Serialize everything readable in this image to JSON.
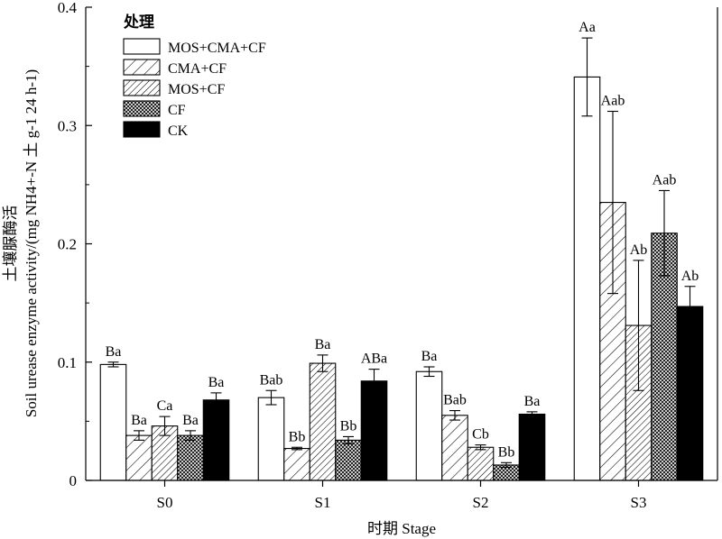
{
  "chart_data": {
    "type": "bar",
    "categories": [
      "S0",
      "S1",
      "S2",
      "S3"
    ],
    "xlabel": "时期 Stage",
    "ylabel_cn": "土壤脲酶活",
    "ylabel_en": "Soil urease enzyme activity/(mg NH4+-N 土 g-1 24 h-1)",
    "ylim": [
      0,
      0.4
    ],
    "yticks": [
      "0",
      "0.1",
      "0.2",
      "0.3",
      "0.4"
    ],
    "legend_title": "处理",
    "legend_position": "top-left",
    "series": [
      {
        "name": "MOS+CMA+CF",
        "pattern": "white",
        "values": [
          0.098,
          0.07,
          0.092,
          0.341
        ],
        "errors": [
          0.002,
          0.006,
          0.004,
          0.033
        ],
        "labels": [
          "Ba",
          "Bab",
          "Ba",
          "Aa"
        ]
      },
      {
        "name": "CMA+CF",
        "pattern": "diagonal",
        "values": [
          0.038,
          0.027,
          0.055,
          0.235
        ],
        "errors": [
          0.004,
          0.001,
          0.004,
          0.077
        ],
        "labels": [
          "Ba",
          "Bb",
          "Bab",
          "Aab"
        ]
      },
      {
        "name": "MOS+CF",
        "pattern": "dense-diagonal",
        "values": [
          0.046,
          0.099,
          0.028,
          0.131
        ],
        "errors": [
          0.008,
          0.007,
          0.002,
          0.055
        ],
        "labels": [
          "Ca",
          "Ba",
          "Cb",
          "Ab"
        ]
      },
      {
        "name": "CF",
        "pattern": "crosshatch",
        "values": [
          0.038,
          0.034,
          0.013,
          0.209
        ],
        "errors": [
          0.004,
          0.003,
          0.002,
          0.036
        ],
        "labels": [
          "Ba",
          "Bb",
          "Bb",
          "Aab"
        ]
      },
      {
        "name": "CK",
        "pattern": "black",
        "values": [
          0.068,
          0.084,
          0.056,
          0.147
        ],
        "errors": [
          0.006,
          0.01,
          0.002,
          0.017
        ],
        "labels": [
          "Ba",
          "ABa",
          "Ba",
          "Ab"
        ]
      }
    ]
  }
}
